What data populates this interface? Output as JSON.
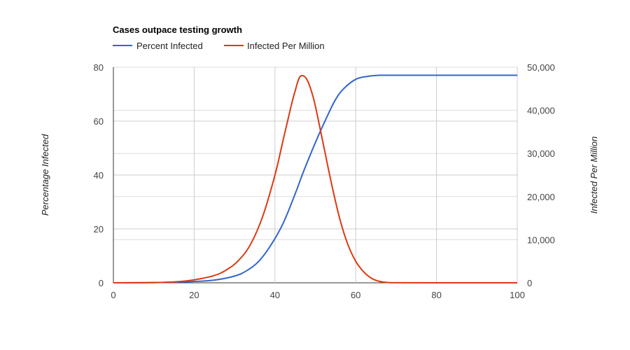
{
  "chart_data": {
    "type": "line",
    "title": "Cases outpace testing growth",
    "legend_position": "top-left",
    "grid": true,
    "x": {
      "range": [
        0,
        100
      ],
      "ticks": [
        "0",
        "20",
        "40",
        "60",
        "80",
        "100"
      ]
    },
    "y_left": {
      "label": "Percentage Infected",
      "range": [
        0,
        80
      ],
      "ticks": [
        "0",
        "20",
        "40",
        "60",
        "80"
      ]
    },
    "y_right": {
      "label": "Infected Per Million",
      "range": [
        0,
        50000
      ],
      "ticks": [
        "0",
        "10,000",
        "20,000",
        "30,000",
        "40,000",
        "50,000"
      ]
    },
    "series": [
      {
        "name": "Percent Infected",
        "axis": "left",
        "color": "#3366cc",
        "x": [
          0,
          10,
          20,
          25,
          30,
          33,
          36,
          39,
          42,
          45,
          47,
          50,
          53,
          55,
          57,
          60,
          63,
          66,
          70,
          80,
          90,
          100
        ],
        "y": [
          0,
          0.1,
          0.5,
          1,
          2.5,
          4.5,
          8,
          14,
          22,
          33,
          41,
          52,
          62,
          68,
          72,
          75.5,
          76.6,
          77,
          77,
          77,
          77,
          77
        ]
      },
      {
        "name": "Infected Per Million",
        "axis": "right",
        "color": "#dc3912",
        "x": [
          0,
          10,
          15,
          20,
          25,
          28,
          31,
          34,
          37,
          40,
          42,
          44,
          45,
          46,
          47,
          48,
          49,
          50,
          52,
          54,
          56,
          58,
          60,
          62,
          64,
          66,
          68,
          70,
          80,
          100
        ],
        "y": [
          0,
          50,
          200,
          700,
          1700,
          3000,
          5200,
          9000,
          15500,
          25000,
          33000,
          41000,
          44500,
          47500,
          48000,
          47000,
          44500,
          41000,
          32000,
          23000,
          15000,
          9000,
          5000,
          2500,
          1000,
          300,
          80,
          20,
          0,
          0
        ]
      }
    ]
  }
}
